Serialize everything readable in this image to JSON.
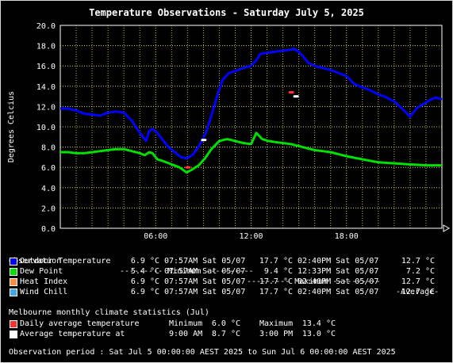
{
  "title": "Temperature Observations - Saturday July 5, 2025",
  "chart_data": {
    "type": "line",
    "title": "Temperature Observations - Saturday July 5, 2025",
    "ylabel": "Degrees Celcius",
    "xlabel": "",
    "ylim": [
      0,
      20
    ],
    "y_ticks": [
      "0.0",
      "2.0",
      "4.0",
      "6.0",
      "8.0",
      "10.0",
      "12.0",
      "14.0",
      "16.0",
      "18.0",
      "20.0"
    ],
    "xlim": [
      0,
      24
    ],
    "x_ticks": [
      {
        "x": 6,
        "label": "06:00"
      },
      {
        "x": 12,
        "label": "12:00"
      },
      {
        "x": 18,
        "label": "18:00"
      }
    ],
    "grid": true,
    "colors": {
      "outdoor": "#0000ff",
      "dew": "#00e000",
      "daily_avg": "#ff3030",
      "avg_at": "#ffffff",
      "grid": "#d8d060"
    },
    "series": [
      {
        "name": "Outdoor Temperature",
        "color": "#0000ff",
        "points": [
          [
            0,
            11.8
          ],
          [
            0.5,
            11.8
          ],
          [
            1,
            11.6
          ],
          [
            1.5,
            11.3
          ],
          [
            2,
            11.2
          ],
          [
            2.5,
            11.1
          ],
          [
            3,
            11.4
          ],
          [
            3.5,
            11.5
          ],
          [
            4,
            11.4
          ],
          [
            4.5,
            10.6
          ],
          [
            5,
            9.4
          ],
          [
            5.4,
            8.6
          ],
          [
            5.6,
            9.6
          ],
          [
            5.8,
            9.8
          ],
          [
            6.1,
            9.4
          ],
          [
            6.4,
            8.8
          ],
          [
            6.8,
            8.0
          ],
          [
            7.2,
            7.5
          ],
          [
            7.6,
            7.0
          ],
          [
            7.95,
            6.9
          ],
          [
            8.3,
            7.2
          ],
          [
            8.6,
            7.8
          ],
          [
            8.9,
            8.6
          ],
          [
            9.2,
            9.6
          ],
          [
            9.6,
            11.6
          ],
          [
            9.9,
            13.2
          ],
          [
            10.2,
            14.6
          ],
          [
            10.6,
            15.3
          ],
          [
            11,
            15.5
          ],
          [
            11.5,
            15.8
          ],
          [
            12,
            16.0
          ],
          [
            12.3,
            16.5
          ],
          [
            12.6,
            17.2
          ],
          [
            13,
            17.3
          ],
          [
            13.5,
            17.4
          ],
          [
            14,
            17.5
          ],
          [
            14.5,
            17.6
          ],
          [
            14.67,
            17.7
          ],
          [
            15,
            17.4
          ],
          [
            15.3,
            16.9
          ],
          [
            15.6,
            16.3
          ],
          [
            16,
            16.0
          ],
          [
            17,
            15.6
          ],
          [
            18,
            15.0
          ],
          [
            18.5,
            14.2
          ],
          [
            19,
            13.9
          ],
          [
            19.5,
            13.6
          ],
          [
            20,
            13.2
          ],
          [
            20.5,
            12.9
          ],
          [
            21,
            12.5
          ],
          [
            21.5,
            11.8
          ],
          [
            22,
            11.0
          ],
          [
            22.4,
            11.8
          ],
          [
            22.8,
            12.2
          ],
          [
            23.2,
            12.6
          ],
          [
            23.6,
            12.9
          ],
          [
            24,
            12.7
          ]
        ]
      },
      {
        "name": "Dew Point",
        "color": "#00e000",
        "points": [
          [
            0,
            7.5
          ],
          [
            0.5,
            7.5
          ],
          [
            1,
            7.4
          ],
          [
            1.5,
            7.4
          ],
          [
            2,
            7.5
          ],
          [
            2.5,
            7.6
          ],
          [
            3,
            7.7
          ],
          [
            3.5,
            7.8
          ],
          [
            4,
            7.8
          ],
          [
            4.5,
            7.6
          ],
          [
            5,
            7.4
          ],
          [
            5.3,
            7.2
          ],
          [
            5.6,
            7.5
          ],
          [
            5.8,
            7.4
          ],
          [
            6.1,
            6.8
          ],
          [
            6.5,
            6.6
          ],
          [
            7,
            6.3
          ],
          [
            7.5,
            6.0
          ],
          [
            7.95,
            5.5
          ],
          [
            8.3,
            5.8
          ],
          [
            8.7,
            6.2
          ],
          [
            9.1,
            6.9
          ],
          [
            9.5,
            7.8
          ],
          [
            10,
            8.6
          ],
          [
            10.5,
            8.8
          ],
          [
            11,
            8.6
          ],
          [
            11.5,
            8.4
          ],
          [
            12,
            8.3
          ],
          [
            12.33,
            9.4
          ],
          [
            12.7,
            8.8
          ],
          [
            13.1,
            8.6
          ],
          [
            13.5,
            8.5
          ],
          [
            14,
            8.4
          ],
          [
            14.5,
            8.3
          ],
          [
            15,
            8.1
          ],
          [
            15.5,
            7.9
          ],
          [
            16,
            7.7
          ],
          [
            16.5,
            7.6
          ],
          [
            17,
            7.5
          ],
          [
            18,
            7.1
          ],
          [
            19,
            6.8
          ],
          [
            20,
            6.5
          ],
          [
            21,
            6.4
          ],
          [
            22,
            6.3
          ],
          [
            23,
            6.2
          ],
          [
            24,
            6.2
          ]
        ]
      }
    ],
    "markers": [
      {
        "name": "Daily average temperature",
        "x": 14.5,
        "y": 13.4,
        "color": "#ff3030"
      },
      {
        "name": "Daily average temperature",
        "x": 8.0,
        "y": 6.0,
        "color": "#ff3030"
      },
      {
        "name": "Average temperature at",
        "x": 14.8,
        "y": 13.0,
        "color": "#ffffff"
      },
      {
        "name": "Average temperature at",
        "x": 9.0,
        "y": 8.7,
        "color": "#ffffff"
      }
    ]
  },
  "table": {
    "header": {
      "label": "Observation",
      "min": "--------- Minimum ----------",
      "max": "--------- Maximum ----------",
      "avg": "-Average-"
    },
    "rows": [
      {
        "color": "#0000ff",
        "label": "Outdoor Temperature",
        "min_val": "6.9 °C",
        "min_time": "07:57AM Sat 05/07",
        "max_val": "17.7 °C",
        "max_time": "02:40PM Sat 05/07",
        "avg": "12.7 °C"
      },
      {
        "color": "#00e000",
        "label": "Dew Point",
        "min_val": "5.4 °C",
        "min_time": "07:57AM Sat 05/07",
        "max_val": "9.4 °C",
        "max_time": "12:33PM Sat 05/07",
        "avg": "7.2 °C"
      },
      {
        "color": "#ff8c40",
        "label": "Heat Index",
        "min_val": "6.9 °C",
        "min_time": "07:57AM Sat 05/07",
        "max_val": "17.7 °C",
        "max_time": "02:40PM Sat 05/07",
        "avg": "12.7 °C"
      },
      {
        "color": "#40a8e8",
        "label": "Wind Chill",
        "min_val": "6.9 °C",
        "min_time": "07:57AM Sat 05/07",
        "max_val": "17.7 °C",
        "max_time": "02:40PM Sat 05/07",
        "avg": "12.7 °C"
      }
    ]
  },
  "climate": {
    "heading": "Melbourne monthly climate statistics (Jul)",
    "rows": [
      {
        "color": "#ff3030",
        "label": "Daily average temperature",
        "min_label": "Minimum",
        "min_a": "6.0 °C",
        "max_label": "Maximum",
        "max_a": "13.4 °C"
      },
      {
        "color": "#ffffff",
        "label": "Average temperature at",
        "min_label": "9:00 AM",
        "min_a": "8.7 °C",
        "max_label": "3:00 PM",
        "max_a": "13.0 °C"
      }
    ]
  },
  "period": "Observation period : Sat Jul 5 00:00:00 AEST 2025 to Sun Jul 6 00:00:00 AEST 2025"
}
